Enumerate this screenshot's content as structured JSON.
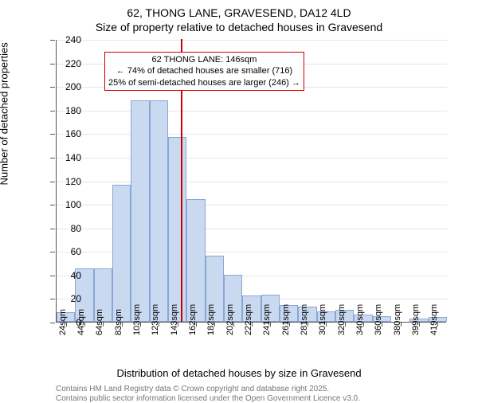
{
  "title_main": "62, THONG LANE, GRAVESEND, DA12 4LD",
  "title_sub": "Size of property relative to detached houses in Gravesend",
  "y_axis_label": "Number of detached properties",
  "x_axis_label": "Distribution of detached houses by size in Gravesend",
  "footer1": "Contains HM Land Registry data © Crown copyright and database right 2025.",
  "footer2": "Contains public sector information licensed under the Open Government Licence v3.0.",
  "chart": {
    "type": "histogram",
    "background_color": "#ffffff",
    "bar_fill": "#c9d9f0",
    "bar_border": "#8aa6d6",
    "grid_color": "#555555",
    "grid_opacity": 0.15,
    "marker_color": "#cc0000",
    "annotation_border": "#cc0000",
    "annotation_text_color": "#000000",
    "ylim": [
      0,
      240
    ],
    "ytick_step": 20,
    "x_labels": [
      "24sqm",
      "44sqm",
      "64sqm",
      "83sqm",
      "103sqm",
      "123sqm",
      "143sqm",
      "162sqm",
      "182sqm",
      "202sqm",
      "222sqm",
      "241sqm",
      "261sqm",
      "281sqm",
      "301sqm",
      "320sqm",
      "340sqm",
      "360sqm",
      "380sqm",
      "399sqm",
      "419sqm"
    ],
    "values": [
      8,
      45,
      45,
      116,
      188,
      188,
      157,
      104,
      56,
      40,
      22,
      23,
      14,
      13,
      9,
      10,
      6,
      5,
      0,
      3,
      4
    ],
    "bar_width_ratio": 1.0,
    "marker_x_category_index": 6.2,
    "annotation_lines": [
      "62 THONG LANE: 146sqm",
      "← 74% of detached houses are smaller (716)",
      "25% of semi-detached houses are larger (246) →"
    ],
    "title_fontsize": 14,
    "label_fontsize": 13,
    "tick_fontsize": 12,
    "x_tick_fontsize": 11,
    "annotation_fontsize": 11,
    "footer_fontsize": 10,
    "footer_color": "#767676"
  }
}
